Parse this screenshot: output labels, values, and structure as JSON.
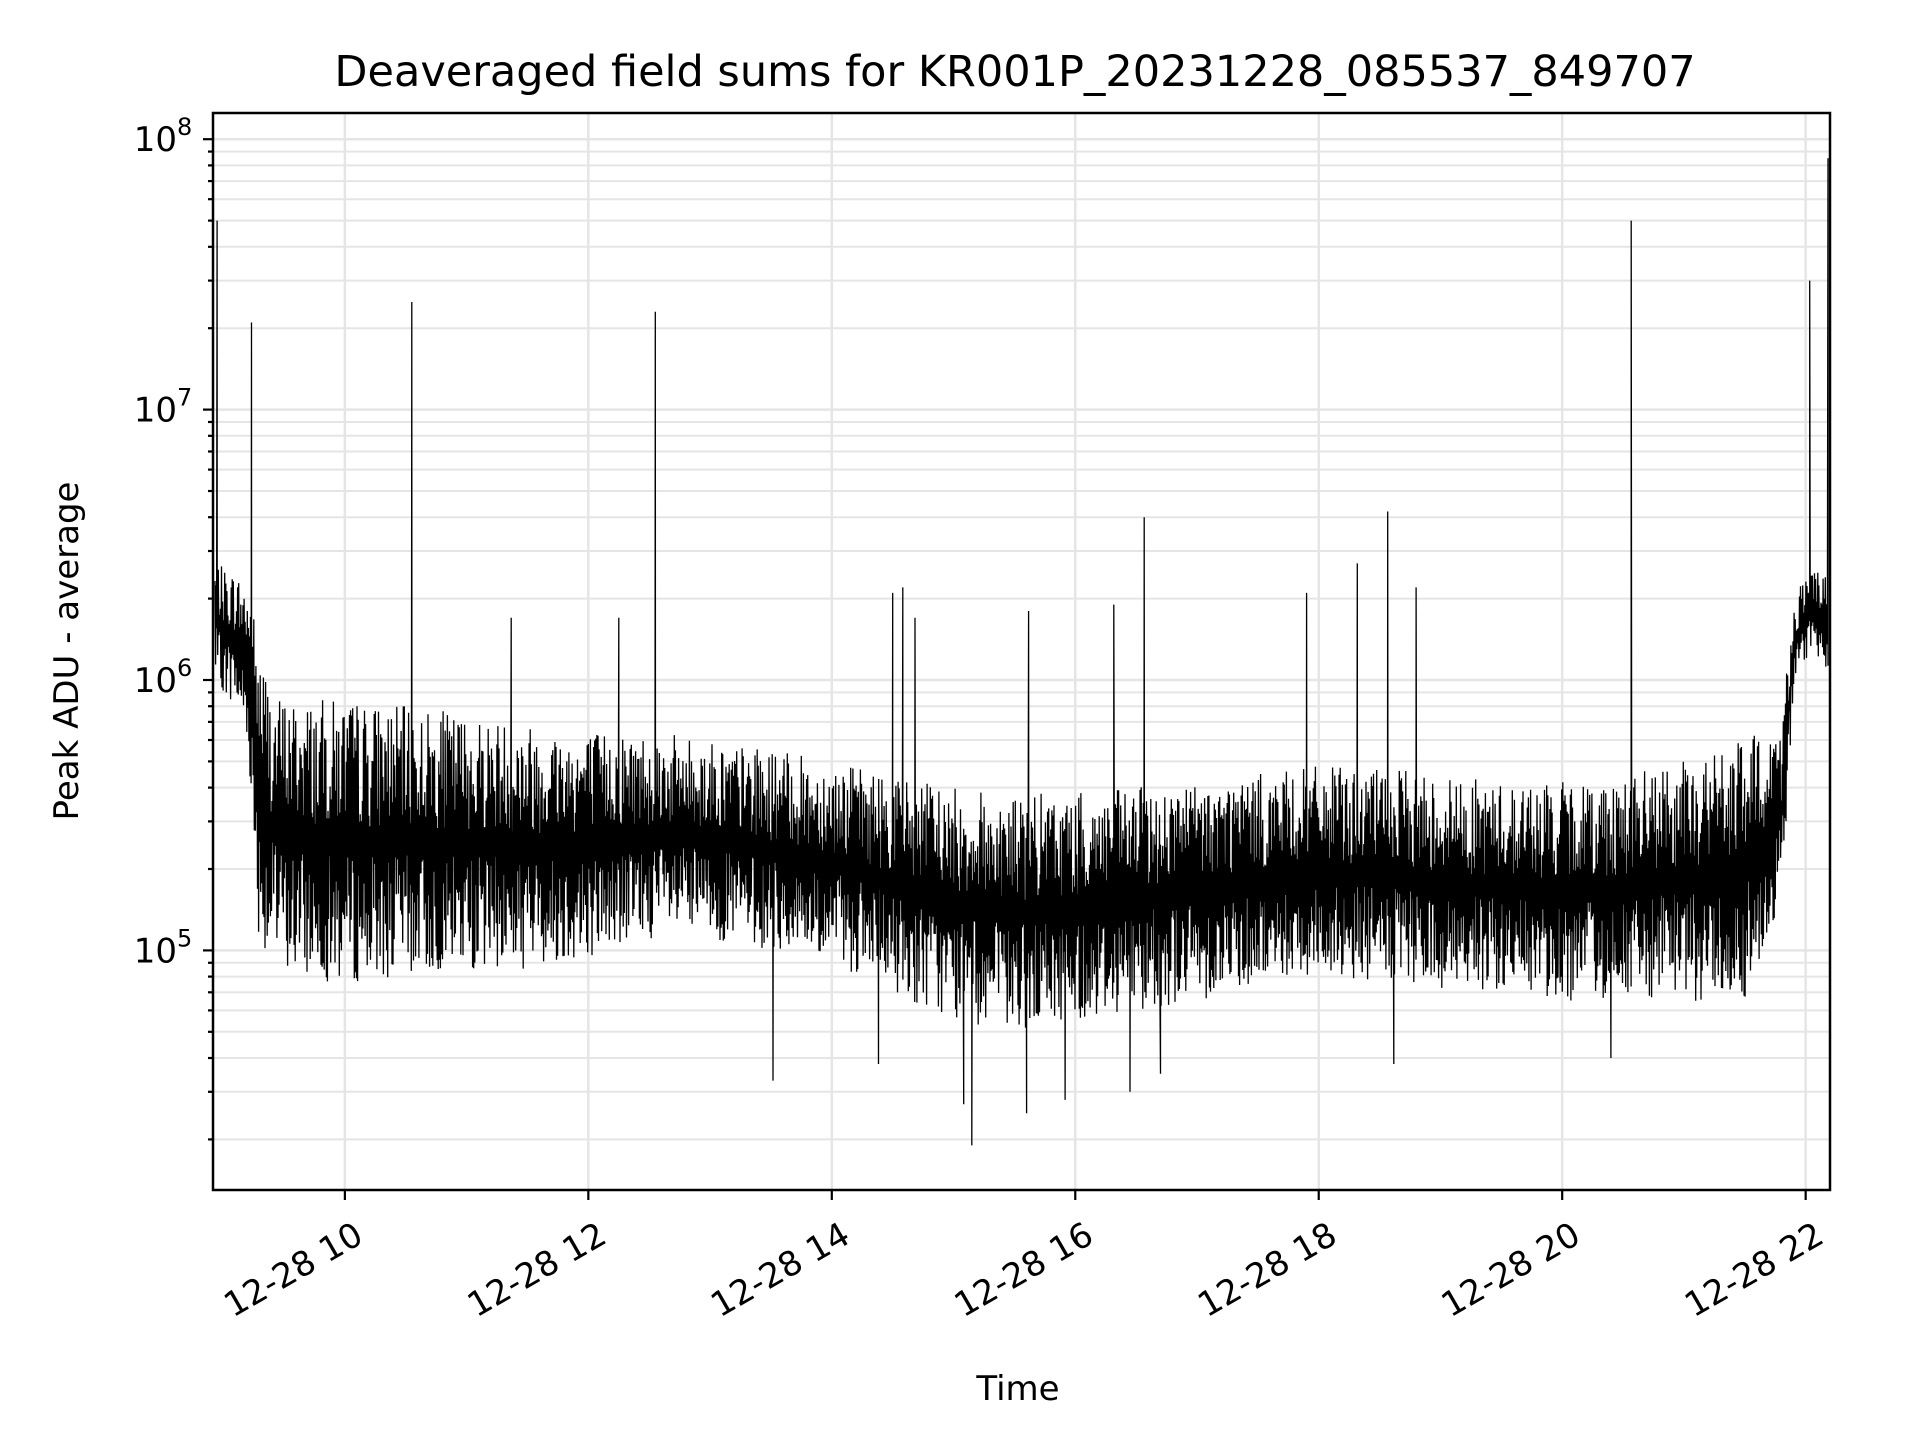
{
  "chart_data": {
    "type": "line",
    "title": "Deaveraged field sums for KR001P_20231228_085537_849707",
    "xlabel": "Time",
    "ylabel": "Peak ADU - average",
    "x_scale": "time",
    "y_scale": "log",
    "xlim": [
      "12-28 08:55",
      "12-28 22:12"
    ],
    "ylim": [
      13000,
      125000000
    ],
    "x_ticks": [
      {
        "time": "12-28 10:00",
        "label": "12-28 10"
      },
      {
        "time": "12-28 12:00",
        "label": "12-28 12"
      },
      {
        "time": "12-28 14:00",
        "label": "12-28 14"
      },
      {
        "time": "12-28 16:00",
        "label": "12-28 16"
      },
      {
        "time": "12-28 18:00",
        "label": "12-28 18"
      },
      {
        "time": "12-28 20:00",
        "label": "12-28 20"
      },
      {
        "time": "12-28 22:00",
        "label": "12-28 22"
      }
    ],
    "y_ticks": [
      {
        "value": 100000,
        "base": "10",
        "exp": "5"
      },
      {
        "value": 1000000,
        "base": "10",
        "exp": "6"
      },
      {
        "value": 10000000,
        "base": "10",
        "exp": "7"
      },
      {
        "value": 100000000,
        "base": "10",
        "exp": "8"
      }
    ],
    "grid": true,
    "legend": "none",
    "line_color": "#000000",
    "series": [
      {
        "x": [
          "12-28 08:56",
          "12-28 09:00",
          "12-28 09:06",
          "12-28 09:12",
          "12-28 09:18",
          "12-28 09:24",
          "12-28 09:36",
          "12-28 10:00",
          "12-28 10:30",
          "12-28 11:00",
          "12-28 11:30",
          "12-28 12:00",
          "12-28 12:30",
          "12-28 13:00",
          "12-28 13:30",
          "12-28 14:00",
          "12-28 14:30",
          "12-28 15:00",
          "12-28 15:30",
          "12-28 16:00",
          "12-28 16:30",
          "12-28 17:00",
          "12-28 17:30",
          "12-28 18:00",
          "12-28 18:30",
          "12-28 19:00",
          "12-28 19:30",
          "12-28 20:00",
          "12-28 20:30",
          "12-28 21:00",
          "12-28 21:30",
          "12-28 21:48",
          "12-28 21:54",
          "12-28 22:00",
          "12-28 22:06",
          "12-28 22:11"
        ],
        "y": [
          1800000,
          1600000,
          1500000,
          1300000,
          900000,
          350000,
          250000,
          250000,
          280000,
          280000,
          280000,
          330000,
          350000,
          330000,
          300000,
          280000,
          230000,
          200000,
          180000,
          180000,
          190000,
          200000,
          230000,
          260000,
          240000,
          220000,
          200000,
          190000,
          190000,
          180000,
          180000,
          300000,
          1100000,
          1600000,
          1700000,
          1600000
        ],
        "low_envelope": [
          1000000,
          900000,
          800000,
          600000,
          100000,
          90000,
          80000,
          75000,
          80000,
          85000,
          85000,
          95000,
          110000,
          110000,
          100000,
          90000,
          70000,
          55000,
          50000,
          55000,
          60000,
          65000,
          75000,
          80000,
          75000,
          70000,
          70000,
          65000,
          65000,
          65000,
          65000,
          150000,
          900000,
          1200000,
          1200000,
          1100000
        ],
        "high_envelope": [
          2800000,
          2600000,
          2500000,
          2300000,
          1400000,
          900000,
          850000,
          850000,
          800000,
          750000,
          700000,
          650000,
          650000,
          600000,
          550000,
          500000,
          450000,
          400000,
          380000,
          380000,
          400000,
          420000,
          450000,
          480000,
          470000,
          450000,
          420000,
          420000,
          450000,
          500000,
          600000,
          700000,
          2000000,
          2500000,
          2500000,
          2400000
        ]
      }
    ],
    "spikes": [
      {
        "x": "12-28 08:57",
        "y": 50000000
      },
      {
        "x": "12-28 09:14",
        "y": 21000000
      },
      {
        "x": "12-28 10:33",
        "y": 25000000
      },
      {
        "x": "12-28 11:22",
        "y": 1700000
      },
      {
        "x": "12-28 12:15",
        "y": 1700000
      },
      {
        "x": "12-28 12:33",
        "y": 23000000
      },
      {
        "x": "12-28 14:30",
        "y": 2100000
      },
      {
        "x": "12-28 14:35",
        "y": 2200000
      },
      {
        "x": "12-28 14:41",
        "y": 1700000
      },
      {
        "x": "12-28 15:37",
        "y": 1800000
      },
      {
        "x": "12-28 16:19",
        "y": 1900000
      },
      {
        "x": "12-28 16:34",
        "y": 4000000
      },
      {
        "x": "12-28 17:54",
        "y": 2100000
      },
      {
        "x": "12-28 18:19",
        "y": 2700000
      },
      {
        "x": "12-28 18:34",
        "y": 4200000
      },
      {
        "x": "12-28 18:48",
        "y": 2200000
      },
      {
        "x": "12-28 20:34",
        "y": 50000000
      },
      {
        "x": "12-28 22:02",
        "y": 30000000
      },
      {
        "x": "12-28 22:11",
        "y": 85000000
      }
    ],
    "dips": [
      {
        "x": "12-28 13:31",
        "y": 33000
      },
      {
        "x": "12-28 14:23",
        "y": 38000
      },
      {
        "x": "12-28 15:05",
        "y": 27000
      },
      {
        "x": "12-28 15:09",
        "y": 19000
      },
      {
        "x": "12-28 15:36",
        "y": 25000
      },
      {
        "x": "12-28 15:55",
        "y": 28000
      },
      {
        "x": "12-28 16:27",
        "y": 30000
      },
      {
        "x": "12-28 16:42",
        "y": 35000
      },
      {
        "x": "12-28 18:37",
        "y": 38000
      },
      {
        "x": "12-28 20:24",
        "y": 40000
      }
    ]
  }
}
